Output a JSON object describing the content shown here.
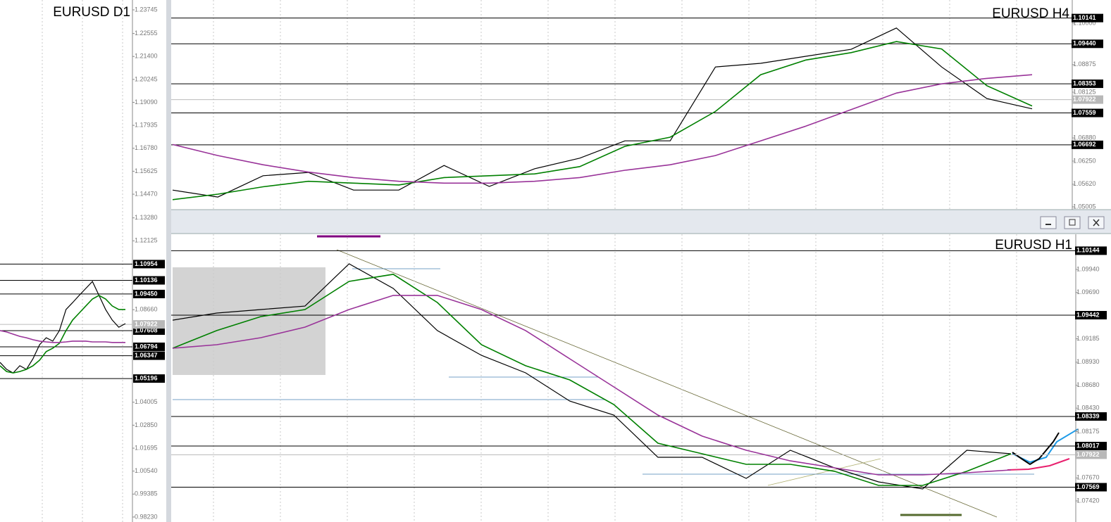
{
  "chart_data": [
    {
      "type": "line",
      "title": "EURUSD D1",
      "ylim": [
        0.9798,
        1.2424
      ],
      "yticks": [
        1.23745,
        1.22555,
        {
          "value": 1.214,
          "label": "1.21400"
        },
        1.20245,
        {
          "value": 1.1909,
          "label": "1.19090"
        },
        1.17935,
        {
          "value": 1.1678,
          "label": "1.16780"
        },
        1.15625,
        {
          "value": 1.1447,
          "label": "1.14470"
        },
        {
          "value": 1.1328,
          "label": "1.13280"
        },
        1.12125,
        {
          "value": 1.0866,
          "label": "1.08660"
        },
        {
          "value": 1.04005,
          "label": "1.04005"
        },
        {
          "value": 1.0285,
          "label": "1.02850"
        },
        1.01695,
        {
          "value": 1.0054,
          "label": "1.00540"
        },
        0.99385,
        {
          "value": 0.9823,
          "label": "0.98230"
        }
      ],
      "levels": [
        1.10954,
        1.10136,
        {
          "value": 1.0945,
          "label": "1.09450"
        },
        1.07608,
        1.06794,
        1.06347,
        1.05196
      ],
      "current": 1.07922,
      "series": [
        {
          "color": "#000000",
          "values": [
            1.0601,
            1.0566,
            1.0548,
            1.0584,
            1.0566,
            1.0619,
            1.069,
            1.0725,
            1.0708,
            1.0761,
            1.0867,
            1.0902,
            1.0938,
            1.0973,
            1.1008,
            1.0938,
            1.0867,
            1.0814,
            1.0778,
            1.0796
          ]
        },
        {
          "color": "#008000",
          "values": [
            1.0584,
            1.0555,
            1.0548,
            1.0555,
            1.0566,
            1.0584,
            1.0612,
            1.0655,
            1.0672,
            1.0697,
            1.0761,
            1.0814,
            1.0849,
            1.0885,
            1.092,
            1.0938,
            1.092,
            1.0885,
            1.0867,
            1.0867
          ]
        },
        {
          "color": "#993399",
          "values": [
            1.0761,
            1.0754,
            1.0743,
            1.0732,
            1.0725,
            1.0715,
            1.0708,
            1.0704,
            1.0701,
            1.0701,
            1.0704,
            1.0708,
            1.0708,
            1.0708,
            1.0704,
            1.0704,
            1.0704,
            1.0701,
            1.0701,
            1.0701
          ]
        }
      ]
    },
    {
      "type": "line",
      "title": "EURUSD H4",
      "ylim": [
        1.04928,
        1.10632
      ],
      "yticks": [
        {
          "value": 1.1,
          "label": "1.10000"
        },
        1.08875,
        1.08125,
        {
          "value": 1.0688,
          "label": "1.06880"
        },
        {
          "value": 1.0625,
          "label": "1.06250"
        },
        {
          "value": 1.0562,
          "label": "1.05620"
        },
        1.05005
      ],
      "levels": [
        1.10141,
        {
          "value": 1.0944,
          "label": "1.09440"
        },
        1.08353,
        1.07559,
        1.06692
      ],
      "current": 1.07922,
      "series": [
        {
          "color": "#000000",
          "values": [
            1.0546,
            1.0527,
            1.0585,
            1.0594,
            1.0546,
            1.0546,
            1.0613,
            1.0556,
            1.0604,
            1.0633,
            1.068,
            1.068,
            1.0881,
            1.0891,
            1.091,
            1.0929,
            1.0987,
            1.0881,
            1.0795,
            1.0767
          ]
        },
        {
          "color": "#008000",
          "values": [
            1.052,
            1.0535,
            1.0555,
            1.057,
            1.0565,
            1.056,
            1.058,
            1.0585,
            1.059,
            1.061,
            1.0665,
            1.069,
            1.076,
            1.086,
            1.09,
            1.092,
            1.095,
            1.093,
            1.083,
            1.0775
          ]
        },
        {
          "color": "#993399",
          "values": [
            1.067,
            1.064,
            1.0615,
            1.0595,
            1.058,
            1.057,
            1.0565,
            1.0565,
            1.057,
            1.058,
            1.06,
            1.0615,
            1.064,
            1.068,
            1.072,
            1.0765,
            1.081,
            1.0835,
            1.085,
            1.086
          ]
        }
      ]
    },
    {
      "type": "line",
      "title": "EURUSD H1",
      "ylim": [
        1.0719,
        1.10323
      ],
      "yticks": [
        {
          "value": 1.0994,
          "label": "1.09940"
        },
        {
          "value": 1.0969,
          "label": "1.09690"
        },
        1.09185,
        {
          "value": 1.0893,
          "label": "1.08930"
        },
        {
          "value": 1.0868,
          "label": "1.08680"
        },
        {
          "value": 1.0843,
          "label": "1.08430"
        },
        1.08175,
        {
          "value": 1.0767,
          "label": "1.07670"
        },
        {
          "value": 1.0742,
          "label": "1.07420"
        }
      ],
      "levels": [
        1.10144,
        1.09442,
        1.08339,
        1.08017,
        1.07569
      ],
      "current": 1.07922,
      "series": [
        {
          "color": "#000000",
          "values": [
            1.09388,
            1.09465,
            1.09503,
            1.09541,
            1.10001,
            1.09733,
            1.09274,
            1.09005,
            1.08814,
            1.08507,
            1.08354,
            1.07895,
            1.07895,
            1.07665,
            1.07971,
            1.0778,
            1.07627,
            1.0755,
            1.07971,
            1.07933
          ]
        },
        {
          "color": "#008000",
          "values": [
            1.09082,
            1.09274,
            1.09427,
            1.09503,
            1.0981,
            1.09887,
            1.0958,
            1.0912,
            1.08891,
            1.08737,
            1.08469,
            1.08048,
            1.07933,
            1.07818,
            1.07818,
            1.07742,
            1.07588,
            1.07588,
            1.07742,
            1.07933
          ]
        },
        {
          "color": "#993399",
          "values": [
            1.09082,
            1.0912,
            1.09197,
            1.09312,
            1.09503,
            1.09657,
            1.09657,
            1.09503,
            1.09274,
            1.08967,
            1.08661,
            1.08354,
            1.08125,
            1.07971,
            1.07856,
            1.0778,
            1.07703,
            1.07703,
            1.07726,
            1.07757
          ]
        }
      ]
    }
  ]
}
